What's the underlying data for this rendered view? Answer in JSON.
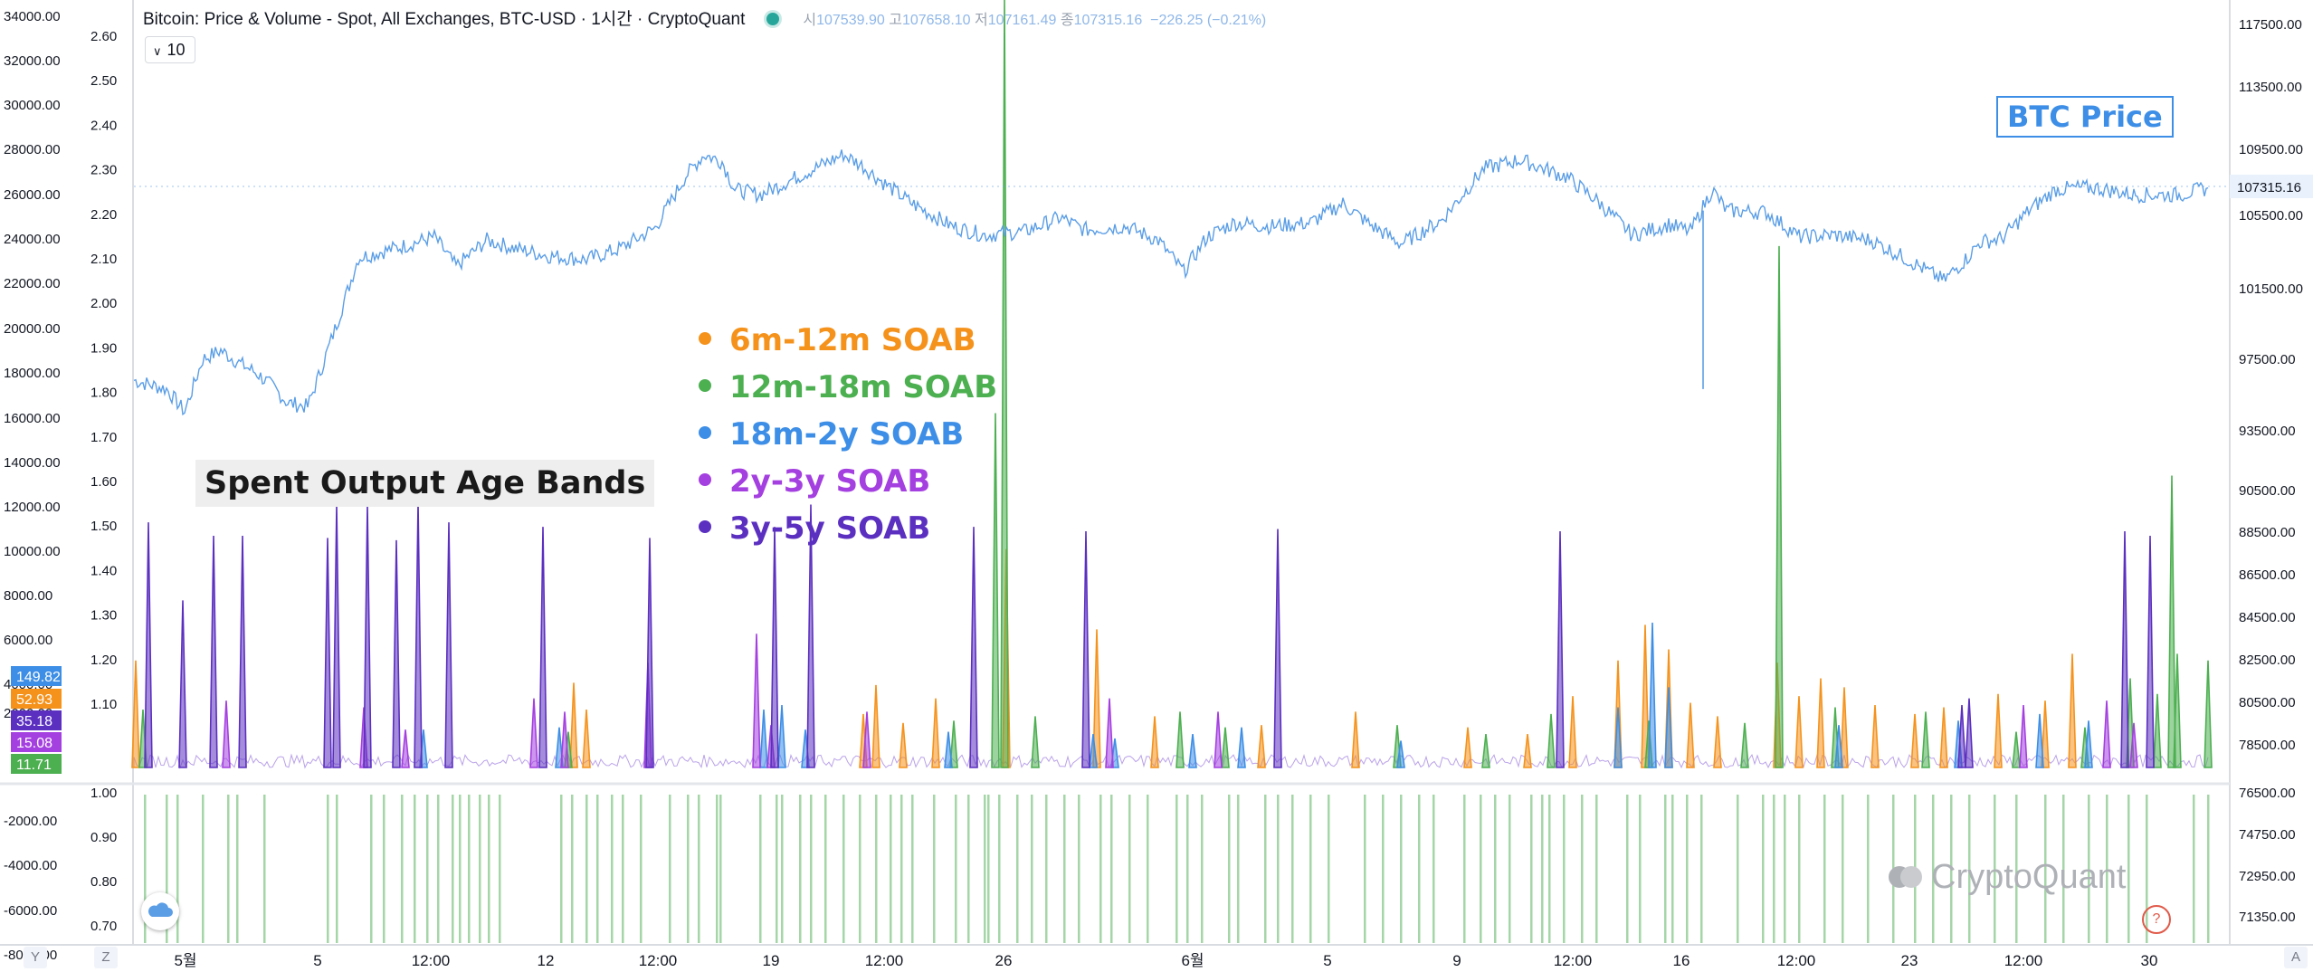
{
  "header": {
    "title": "Bitcoin: Price & Volume - Spot, All Exchanges, BTC-USD · 1시간 · CryptoQuant",
    "ohlc": [
      {
        "label": "시",
        "value": "107539.90"
      },
      {
        "label": "고",
        "value": "107658.10"
      },
      {
        "label": "저",
        "value": "107161.49"
      },
      {
        "label": "종",
        "value": "107315.16"
      }
    ],
    "change": "−226.25 (−0.21%)"
  },
  "interval": "10",
  "price_label": "BTC Price",
  "band_title": "Spent Output Age Bands",
  "watermark": "CryptoQuant",
  "help_glyph": "?",
  "scale_keys": {
    "left": "Y",
    "z": "Z",
    "right": "A"
  },
  "colors": {
    "price": "#5b9ee6",
    "s6m12m": "#f5921b",
    "s12m18m": "#4caf50",
    "s18m2y": "#3d8ee6",
    "s2y3y": "#a43fe0",
    "s3y5y": "#5b2fc0",
    "lower_bars": "#a5d6a7"
  },
  "chart_data": {
    "type": "line",
    "x_ticks": [
      "5월",
      "5",
      "12:00",
      "12",
      "12:00",
      "19",
      "12:00",
      "26",
      "6월",
      "5",
      "9",
      "12:00",
      "16",
      "12:00",
      "23",
      "12:00",
      "30"
    ],
    "price_axis": {
      "ylim": [
        70000,
        119000
      ],
      "ticks": [
        "117500.00",
        "113500.00",
        "109500.00",
        "105500.00",
        "101500.00",
        "97500.00",
        "93500.00",
        "90500.00",
        "88500.00",
        "86500.00",
        "84500.00",
        "82500.00",
        "80500.00",
        "78500.00",
        "76500.00",
        "74750.00",
        "72950.00",
        "71350.00"
      ],
      "last_value": "107315.16"
    },
    "left_axis_ticks": [
      "34000.00",
      "32000.00",
      "30000.00",
      "28000.00",
      "26000.00",
      "24000.00",
      "22000.00",
      "20000.00",
      "18000.00",
      "16000.00",
      "14000.00",
      "12000.00",
      "10000.00",
      "8000.00",
      "6000.00",
      "4000.00",
      "2000.00",
      "-2000.00",
      "-4000.00",
      "-6000.00",
      "-8000.00"
    ],
    "mid_axis_ticks": [
      "2.60",
      "2.50",
      "2.40",
      "2.30",
      "2.20",
      "2.10",
      "2.00",
      "1.90",
      "1.80",
      "1.70",
      "1.60",
      "1.50",
      "1.40",
      "1.30",
      "1.20",
      "1.10"
    ],
    "lower_axis_ticks": [
      "1.00",
      "0.90",
      "0.80",
      "0.70"
    ],
    "last_value_badges": [
      {
        "series": "18m-2y SOAB",
        "value": "149.82"
      },
      {
        "series": "6m-12m SOAB",
        "value": "52.93"
      },
      {
        "series": "3y-5y SOAB",
        "value": "35.18"
      },
      {
        "series": "2y-3y SOAB",
        "value": "15.08"
      },
      {
        "series": "12m-18m SOAB",
        "value": "11.71"
      }
    ],
    "price_series": {
      "name": "BTC Price",
      "points": [
        [
          0,
          96300
        ],
        [
          18,
          95800
        ],
        [
          28,
          94500
        ],
        [
          38,
          97500
        ],
        [
          48,
          98000
        ],
        [
          58,
          97300
        ],
        [
          68,
          96700
        ],
        [
          78,
          95800
        ],
        [
          85,
          95000
        ],
        [
          96,
          94800
        ],
        [
          102,
          96500
        ],
        [
          112,
          99500
        ],
        [
          124,
          103300
        ],
        [
          150,
          104000
        ],
        [
          166,
          104500
        ],
        [
          178,
          102800
        ],
        [
          195,
          104300
        ],
        [
          212,
          103800
        ],
        [
          230,
          103400
        ],
        [
          250,
          103200
        ],
        [
          268,
          103800
        ],
        [
          288,
          105000
        ],
        [
          305,
          108000
        ],
        [
          315,
          109200
        ],
        [
          325,
          108800
        ],
        [
          332,
          107200
        ],
        [
          346,
          106900
        ],
        [
          370,
          108100
        ],
        [
          392,
          109200
        ],
        [
          402,
          108600
        ],
        [
          414,
          107600
        ],
        [
          430,
          106400
        ],
        [
          452,
          105100
        ],
        [
          470,
          104600
        ],
        [
          492,
          104800
        ],
        [
          512,
          105600
        ],
        [
          525,
          104900
        ],
        [
          548,
          105100
        ],
        [
          566,
          104300
        ],
        [
          580,
          102500
        ],
        [
          593,
          104500
        ],
        [
          608,
          105300
        ],
        [
          628,
          105100
        ],
        [
          650,
          105300
        ],
        [
          668,
          106400
        ],
        [
          683,
          105200
        ],
        [
          700,
          104100
        ],
        [
          722,
          105400
        ],
        [
          746,
          108400
        ],
        [
          766,
          108900
        ],
        [
          792,
          107900
        ],
        [
          808,
          106600
        ],
        [
          828,
          104600
        ],
        [
          848,
          105200
        ],
        [
          860,
          104800
        ],
        [
          872,
          107200
        ],
        [
          880,
          106000
        ],
        [
          902,
          105900
        ],
        [
          920,
          104500
        ],
        [
          940,
          104600
        ],
        [
          960,
          104300
        ],
        [
          980,
          103200
        ],
        [
          1000,
          102000
        ],
        [
          1013,
          103300
        ],
        [
          1020,
          104200
        ],
        [
          1032,
          104400
        ],
        [
          1048,
          106100
        ],
        [
          1062,
          107200
        ],
        [
          1074,
          107300
        ],
        [
          1084,
          107300
        ],
        [
          1105,
          106900
        ],
        [
          1130,
          106900
        ],
        [
          1146,
          107300
        ]
      ]
    },
    "soab_series": [
      {
        "name": "6m-12m SOAB",
        "color": "#f5921b",
        "spikes": [
          [
            1,
            4800
          ],
          [
            243,
            3800
          ],
          [
            250,
            2600
          ],
          [
            403,
            2400
          ],
          [
            410,
            3700
          ],
          [
            425,
            2000
          ],
          [
            443,
            3100
          ],
          [
            482,
            9800
          ],
          [
            532,
            6200
          ],
          [
            564,
            2300
          ],
          [
            623,
            1900
          ],
          [
            675,
            2500
          ],
          [
            737,
            1800
          ],
          [
            770,
            1500
          ],
          [
            795,
            3200
          ],
          [
            820,
            4800
          ],
          [
            835,
            6400
          ],
          [
            848,
            5300
          ],
          [
            860,
            2900
          ],
          [
            875,
            2300
          ],
          [
            908,
            4700
          ],
          [
            920,
            3200
          ],
          [
            932,
            4000
          ],
          [
            945,
            3600
          ],
          [
            962,
            2800
          ],
          [
            984,
            2400
          ],
          [
            1000,
            2700
          ],
          [
            1030,
            3300
          ],
          [
            1056,
            3000
          ],
          [
            1071,
            5100
          ]
        ]
      },
      {
        "name": "12m-18m SOAB",
        "color": "#4caf50",
        "spikes": [
          [
            5,
            2600
          ],
          [
            240,
            1600
          ],
          [
            453,
            2100
          ],
          [
            476,
            15900
          ],
          [
            481,
            34500
          ],
          [
            498,
            2300
          ],
          [
            578,
            2500
          ],
          [
            603,
            1800
          ],
          [
            698,
            1900
          ],
          [
            747,
            1500
          ],
          [
            783,
            2400
          ],
          [
            837,
            2100
          ],
          [
            890,
            2000
          ],
          [
            909,
            23400
          ],
          [
            940,
            2700
          ],
          [
            990,
            2500
          ],
          [
            1040,
            1600
          ],
          [
            1078,
            1800
          ],
          [
            1103,
            4000
          ],
          [
            1118,
            3300
          ],
          [
            1126,
            13100
          ],
          [
            1129,
            5100
          ],
          [
            1146,
            4800
          ]
        ]
      },
      {
        "name": "18m-2y SOAB",
        "color": "#3d8ee6",
        "spikes": [
          [
            160,
            1700
          ],
          [
            235,
            1800
          ],
          [
            348,
            2600
          ],
          [
            358,
            2800
          ],
          [
            371,
            1700
          ],
          [
            450,
            1600
          ],
          [
            530,
            1500
          ],
          [
            542,
            1300
          ],
          [
            585,
            1500
          ],
          [
            612,
            1800
          ],
          [
            700,
            1200
          ],
          [
            820,
            2700
          ],
          [
            839,
            6500
          ],
          [
            848,
            3600
          ],
          [
            942,
            1900
          ],
          [
            1008,
            2100
          ],
          [
            1053,
            2400
          ],
          [
            1080,
            2100
          ]
        ]
      },
      {
        "name": "2y-3y SOAB",
        "color": "#a43fe0",
        "spikes": [
          [
            51,
            3000
          ],
          [
            127,
            2700
          ],
          [
            150,
            1700
          ],
          [
            221,
            3100
          ],
          [
            238,
            2500
          ],
          [
            284,
            4700
          ],
          [
            344,
            6000
          ],
          [
            352,
            1900
          ],
          [
            405,
            2500
          ],
          [
            539,
            3100
          ],
          [
            599,
            2500
          ],
          [
            1044,
            2800
          ],
          [
            1090,
            3000
          ],
          [
            1105,
            2000
          ]
        ]
      },
      {
        "name": "3y-5y SOAB",
        "color": "#5b2fc0",
        "spikes": [
          [
            8,
            11000
          ],
          [
            27,
            7500
          ],
          [
            44,
            10400
          ],
          [
            60,
            10400
          ],
          [
            107,
            10300
          ],
          [
            112,
            11800
          ],
          [
            129,
            11800
          ],
          [
            145,
            10200
          ],
          [
            157,
            11900
          ],
          [
            174,
            11000
          ],
          [
            226,
            10800
          ],
          [
            285,
            10300
          ],
          [
            354,
            10800
          ],
          [
            374,
            11800
          ],
          [
            464,
            10800
          ],
          [
            526,
            10600
          ],
          [
            632,
            10700
          ],
          [
            788,
            10600
          ],
          [
            1010,
            2800
          ],
          [
            1014,
            3100
          ],
          [
            1100,
            10600
          ],
          [
            1114,
            10400
          ]
        ]
      }
    ],
    "lower_series": {
      "name": "",
      "lines": [
        6,
        18,
        24,
        38,
        52,
        57,
        72,
        107,
        112,
        131,
        138,
        148,
        155,
        162,
        168,
        176,
        180,
        185,
        191,
        196,
        202,
        236,
        242,
        250,
        256,
        264,
        270,
        280,
        296,
        306,
        312,
        322,
        324,
        346,
        355,
        358,
        368,
        374,
        382,
        392,
        401,
        410,
        418,
        424,
        430,
        442,
        454,
        461,
        470,
        472,
        478,
        488,
        496,
        504,
        514,
        522,
        534,
        540,
        550,
        560,
        576,
        582,
        590,
        605,
        610,
        625,
        632,
        640,
        650,
        660,
        680,
        690,
        700,
        710,
        718,
        735,
        744,
        752,
        760,
        772,
        778,
        782,
        790,
        800,
        808,
        825,
        832,
        846,
        850,
        858,
        866,
        886,
        900,
        906,
        912,
        920,
        934,
        944,
        958,
        972,
        984,
        994,
        1004,
        1014,
        1028,
        1040,
        1056,
        1066,
        1080,
        1090,
        1102,
        1112,
        1138,
        1146
      ]
    }
  }
}
